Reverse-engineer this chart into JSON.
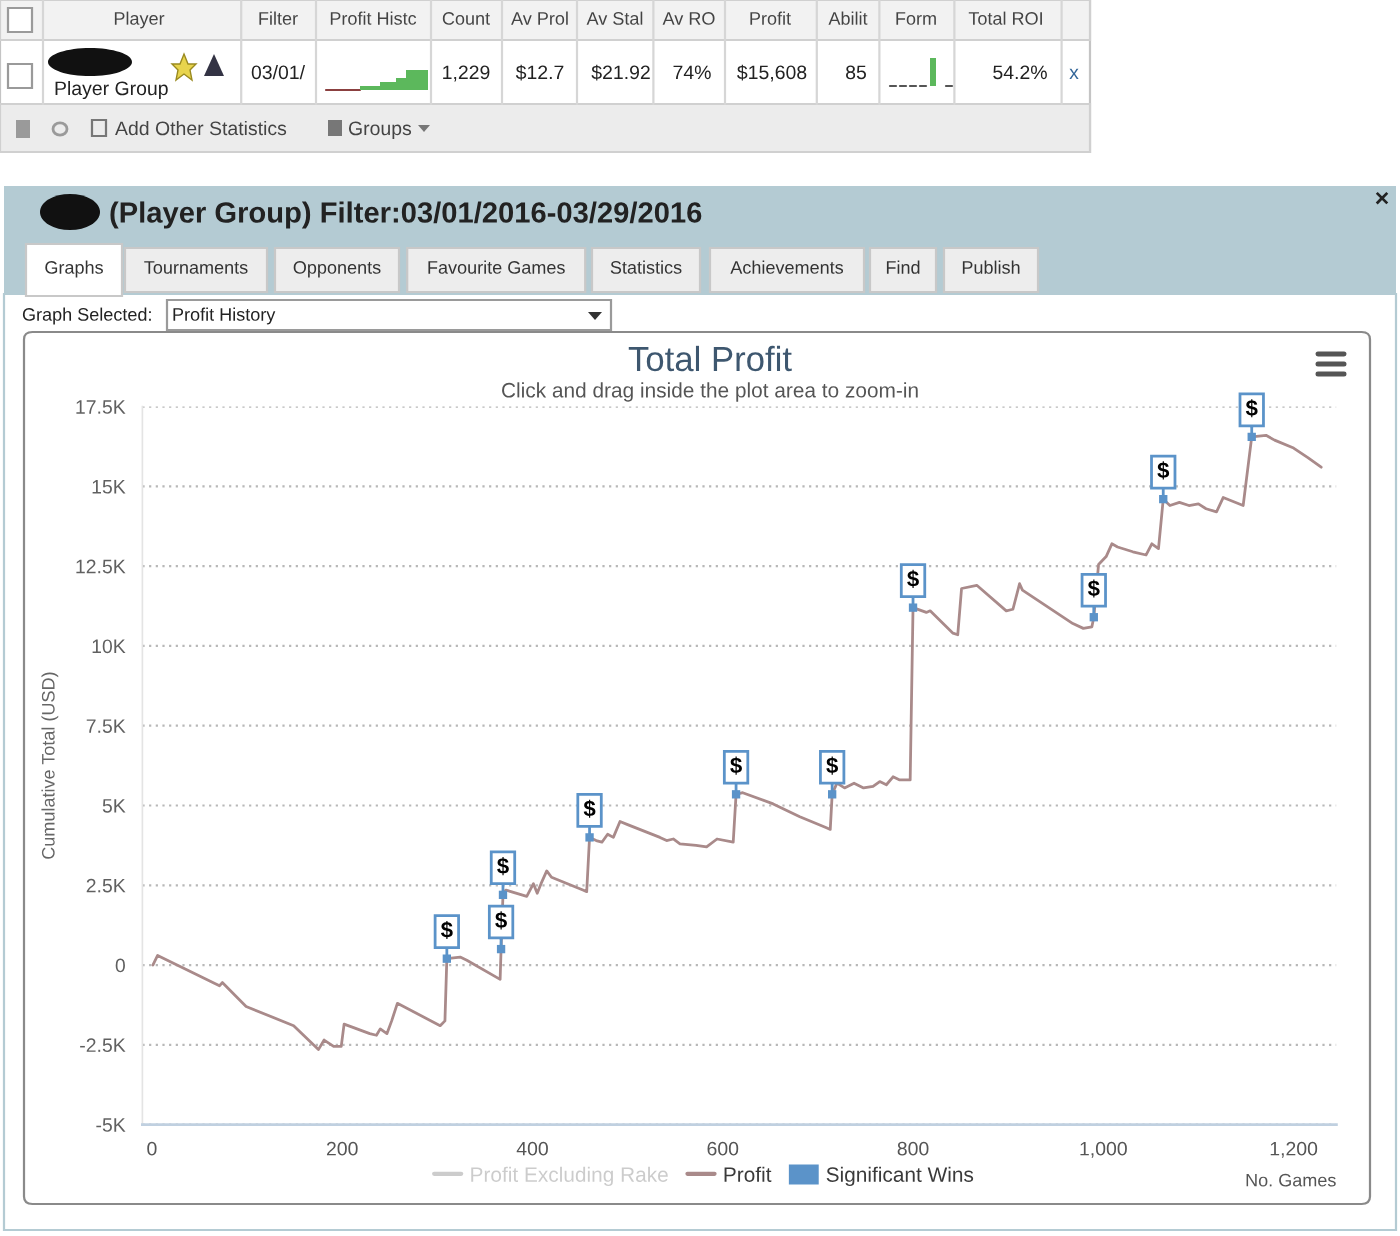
{
  "chart_data": {
    "type": "line",
    "title": "Total Profit",
    "subtitle": "Click and drag inside the plot area to zoom-in",
    "xlabel": "No. Games",
    "ylabel": "Cumulative Total (USD)",
    "xlim": [
      -10,
      1245
    ],
    "ylim": [
      -5000,
      17500
    ],
    "xticks": [
      0,
      200,
      400,
      600,
      800,
      {
        "value": 1000,
        "label": "1,000"
      },
      {
        "value": 1200,
        "label": "1,200"
      }
    ],
    "yticks": [
      {
        "value": -5000,
        "label": "-5K"
      },
      {
        "value": -2500,
        "label": "-2.5K"
      },
      0,
      {
        "value": 2500,
        "label": "2.5K"
      },
      {
        "value": 5000,
        "label": "5K"
      },
      {
        "value": 7500,
        "label": "7.5K"
      },
      {
        "value": 10000,
        "label": "10K"
      },
      {
        "value": 12500,
        "label": "12.5K"
      },
      {
        "value": 15000,
        "label": "15K"
      },
      {
        "value": 17500,
        "label": "17.5K"
      }
    ],
    "grid": "y",
    "legend": "bottom",
    "series": [
      {
        "name": "Profit Excluding Rake",
        "color": "#cccccc"
      },
      {
        "name": "Profit",
        "color": "#a98a8a",
        "x": [
          1,
          6,
          71,
          74,
          99,
          149,
          175,
          181,
          191,
          199,
          202,
          229,
          236,
          240,
          247,
          252,
          258,
          303,
          308,
          310,
          324,
          331,
          366,
          367,
          369,
          372,
          394,
          401,
          405,
          409,
          415,
          420,
          453,
          457,
          460,
          467,
          473,
          479,
          485,
          492,
          500,
          534,
          541,
          548,
          555,
          572,
          583,
          594,
          611,
          614,
          621,
          653,
          681,
          709,
          713,
          715,
          720,
          728,
          738,
          748,
          758,
          765,
          772,
          779,
          786,
          797,
          800,
          814,
          818,
          842,
          847,
          851,
          867,
          898,
          905,
          912,
          915,
          968,
          979,
          988,
          990,
          995,
          1003,
          1009,
          1015,
          1031,
          1045,
          1051,
          1058,
          1063,
          1070,
          1080,
          1090,
          1100,
          1108,
          1119,
          1126,
          1147,
          1156,
          1171,
          1180,
          1200,
          1215,
          1229
        ],
        "values": [
          0,
          300,
          -650,
          -550,
          -1300,
          -1900,
          -2650,
          -2350,
          -2550,
          -2550,
          -1850,
          -2150,
          -2200,
          -2000,
          -2150,
          -1750,
          -1200,
          -1900,
          -1750,
          200,
          250,
          150,
          -450,
          500,
          2200,
          2350,
          2150,
          2550,
          2250,
          2550,
          2950,
          2750,
          2350,
          2300,
          4000,
          3900,
          3850,
          4100,
          4000,
          4500,
          4400,
          4000,
          3900,
          3950,
          3800,
          3750,
          3700,
          3950,
          3850,
          5350,
          5400,
          5050,
          4650,
          4300,
          4250,
          5350,
          5700,
          5550,
          5700,
          5550,
          5600,
          5750,
          5650,
          5900,
          5800,
          5800,
          11200,
          11050,
          11100,
          10400,
          10350,
          11800,
          11900,
          11100,
          11150,
          11950,
          11750,
          10700,
          10550,
          10600,
          10900,
          12550,
          12800,
          13200,
          13100,
          12950,
          12850,
          13200,
          13050,
          14600,
          14400,
          14500,
          14400,
          14450,
          14300,
          14200,
          14650,
          14400,
          16550,
          16600,
          16450,
          16200,
          15900,
          15600
        ]
      },
      {
        "name": "Significant Wins",
        "color": "#5b93c9",
        "type": "scatter",
        "x": [
          310,
          367,
          369,
          460,
          614,
          715,
          800,
          990,
          1063,
          1156
        ],
        "values": [
          200,
          500,
          2200,
          4000,
          5350,
          5350,
          11200,
          10900,
          14600,
          16550
        ],
        "value_labels": [
          "$",
          "$",
          "$",
          "$",
          "$",
          "$",
          "$",
          "$",
          "$",
          "$"
        ]
      }
    ],
    "annotations": [
      "Player",
      "Filter",
      "Profit Histc",
      "Count",
      "Av Prol",
      "Av Stal",
      "Av RO",
      "Profit",
      "Abilit",
      "Form",
      "Total ROI",
      "Player Group",
      "03/01/",
      "1,229",
      "$12.7",
      "$21.92",
      "74%",
      "$15,608",
      "85",
      "54.2%",
      "x",
      "Add Other Statistics",
      "Groups",
      "(Player Group) Filter:03/01/2016-03/29/2016",
      "Graphs",
      "Tournaments",
      "Opponents",
      "Favourite Games",
      "Statistics",
      "Achievements",
      "Find",
      "Publish",
      "Graph Selected:",
      "Profit History",
      "×"
    ]
  }
}
